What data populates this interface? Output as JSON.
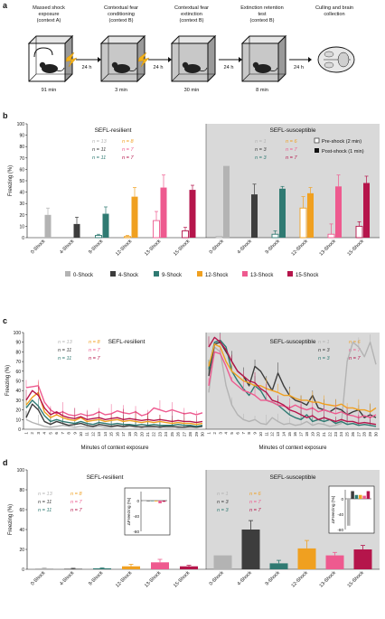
{
  "panel_labels": {
    "a": "a",
    "b": "b",
    "c": "c",
    "d": "d"
  },
  "panel_a": {
    "stages": [
      {
        "title": [
          "Massed shock",
          "exposure",
          "(context A)"
        ],
        "duration": "91 min",
        "shock": true
      },
      {
        "title": [
          "Contextual fear",
          "conditioning",
          "(context B)"
        ],
        "duration": "3 min",
        "shock": true
      },
      {
        "title": [
          "Contextual fear",
          "extinction",
          "(context B)"
        ],
        "duration": "30 min",
        "shock": false
      },
      {
        "title": [
          "Extinction retention",
          "test",
          "(context B)"
        ],
        "duration": "8 min",
        "shock": false
      },
      {
        "title": [
          "Culling and brain",
          "collection"
        ],
        "duration": "",
        "shock": false
      }
    ],
    "gap_label": "24 h"
  },
  "groups": {
    "resilient_title": "SEFL-resilient",
    "susceptible_title": "SEFL-susceptible",
    "names": [
      "0-Shock",
      "4-Shock",
      "9-Shock",
      "12-Shock",
      "13-Shock",
      "15-Shock"
    ],
    "colors": [
      "#b3b3b3",
      "#3d3d3d",
      "#2f7a72",
      "#f0a020",
      "#ee5a8f",
      "#b5154b"
    ],
    "n_resilient": [
      "n = 13",
      "n = 11",
      "n = 11",
      "n = 8",
      "n = 7",
      "n = 7"
    ],
    "n_susceptible_b": [
      "n = 1",
      "n = 3",
      "n = 3",
      "n = 6",
      "n = 7",
      "n = 7"
    ],
    "n_susceptible_c": [
      "n = 1",
      "n = 3",
      "n = 3",
      "n = 6",
      "n = 7",
      "n = 7"
    ]
  },
  "chart_data": [
    {
      "type": "bar",
      "panel": "b",
      "ylabel": "Freezing (%)",
      "ylim": [
        0,
        100
      ],
      "yticks": [
        "0",
        "10",
        "20",
        "30",
        "40",
        "50",
        "60",
        "70",
        "80",
        "90",
        "100"
      ],
      "legend": {
        "pre": "Pre-shock (2 min)",
        "post": "Post-shock (1 min)"
      },
      "categories": [
        "0-Shock",
        "4-Shock",
        "9-Shock",
        "12-Shock",
        "13-Shock",
        "15-Shock"
      ],
      "series": [
        {
          "name": "Pre-shock (2 min)",
          "resilient": [
            0,
            0,
            2,
            1,
            15,
            6
          ],
          "resilient_err": [
            0,
            0,
            1,
            1,
            8,
            3
          ],
          "susceptible": [
            1,
            0,
            3,
            26,
            3,
            10
          ],
          "susceptible_err": [
            0,
            0,
            3,
            10,
            9,
            4
          ]
        },
        {
          "name": "Post-shock (1 min)",
          "resilient": [
            20,
            12,
            21,
            36,
            44,
            42
          ],
          "resilient_err": [
            6,
            6,
            6,
            8,
            11,
            4
          ],
          "susceptible": [
            63,
            38,
            43,
            39,
            45,
            48
          ],
          "susceptible_err": [
            0,
            9,
            2,
            5,
            10,
            6
          ]
        }
      ]
    },
    {
      "type": "line",
      "panel": "c",
      "xlabel": "Minutes of context exposure",
      "ylabel": "Freezing (%)",
      "ylim": [
        0,
        100
      ],
      "yticks": [
        "0",
        "10",
        "20",
        "30",
        "40",
        "50",
        "60",
        "70",
        "80",
        "90",
        "100"
      ],
      "x": [
        "1",
        "2",
        "3",
        "4",
        "5",
        "6",
        "7",
        "8",
        "9",
        "10",
        "11",
        "12",
        "13",
        "14",
        "15",
        "16",
        "17",
        "18",
        "19",
        "20",
        "21",
        "22",
        "23",
        "24",
        "25",
        "26",
        "27",
        "28",
        "29",
        "30"
      ],
      "resilient": [
        {
          "name": "0-Shock",
          "values": [
            10,
            7,
            5,
            3,
            2,
            3,
            4,
            3,
            2,
            3,
            2,
            2,
            3,
            2,
            2,
            3,
            2,
            3,
            2,
            3,
            2,
            2,
            3,
            2,
            2,
            3,
            2,
            2,
            2,
            3
          ]
        },
        {
          "name": "4-Shock",
          "values": [
            12,
            26,
            20,
            8,
            5,
            8,
            6,
            4,
            5,
            6,
            4,
            3,
            5,
            4,
            3,
            4,
            3,
            4,
            3,
            2,
            3,
            3,
            2,
            3,
            3,
            2,
            2,
            3,
            2,
            3
          ]
        },
        {
          "name": "9-Shock",
          "values": [
            22,
            30,
            24,
            14,
            8,
            10,
            8,
            7,
            6,
            8,
            6,
            5,
            7,
            6,
            5,
            6,
            5,
            5,
            4,
            5,
            4,
            5,
            4,
            4,
            4,
            5,
            4,
            4,
            3,
            4
          ]
        },
        {
          "name": "12-Shock",
          "values": [
            25,
            33,
            38,
            18,
            12,
            15,
            12,
            10,
            9,
            12,
            8,
            9,
            10,
            8,
            9,
            10,
            8,
            9,
            8,
            7,
            8,
            7,
            8,
            7,
            6,
            7,
            6,
            6,
            5,
            6
          ]
        },
        {
          "name": "13-Shock",
          "values": [
            43,
            44,
            45,
            28,
            20,
            16,
            18,
            15,
            14,
            16,
            14,
            15,
            18,
            15,
            16,
            19,
            17,
            16,
            18,
            14,
            16,
            22,
            20,
            18,
            20,
            18,
            16,
            17,
            15,
            17
          ]
        },
        {
          "name": "15-Shock",
          "values": [
            30,
            40,
            35,
            22,
            15,
            18,
            14,
            12,
            11,
            13,
            10,
            11,
            12,
            10,
            11,
            12,
            10,
            11,
            10,
            9,
            10,
            9,
            10,
            9,
            8,
            9,
            8,
            8,
            7,
            8
          ]
        }
      ],
      "susceptible": [
        {
          "name": "0-Shock",
          "values": [
            38,
            85,
            80,
            45,
            25,
            15,
            10,
            8,
            10,
            6,
            5,
            12,
            8,
            5,
            6,
            4,
            5,
            8,
            4,
            6,
            5,
            3,
            4,
            6,
            70,
            90,
            85,
            75,
            90,
            67
          ]
        },
        {
          "name": "4-Shock",
          "values": [
            55,
            88,
            90,
            80,
            70,
            60,
            55,
            45,
            65,
            60,
            50,
            40,
            58,
            45,
            35,
            30,
            28,
            25,
            35,
            22,
            20,
            18,
            22,
            20,
            15,
            18,
            20,
            12,
            15,
            12
          ]
        },
        {
          "name": "9-Shock",
          "values": [
            62,
            90,
            92,
            85,
            60,
            50,
            42,
            35,
            45,
            40,
            30,
            28,
            25,
            20,
            15,
            12,
            10,
            15,
            8,
            10,
            8,
            10,
            6,
            8,
            5,
            6,
            4,
            5,
            4,
            3
          ]
        },
        {
          "name": "12-Shock",
          "values": [
            65,
            88,
            85,
            70,
            60,
            55,
            50,
            48,
            45,
            45,
            42,
            40,
            38,
            35,
            35,
            32,
            30,
            30,
            28,
            28,
            26,
            25,
            24,
            26,
            22,
            22,
            20,
            20,
            18,
            22
          ]
        },
        {
          "name": "13-Shock",
          "values": [
            45,
            80,
            78,
            65,
            50,
            45,
            40,
            38,
            35,
            30,
            30,
            28,
            25,
            24,
            22,
            25,
            22,
            20,
            22,
            18,
            20,
            18,
            16,
            18,
            15,
            14,
            12,
            14,
            12,
            15
          ]
        },
        {
          "name": "15-Shock",
          "values": [
            85,
            95,
            90,
            82,
            70,
            60,
            55,
            50,
            48,
            42,
            38,
            30,
            28,
            25,
            20,
            18,
            15,
            12,
            14,
            10,
            12,
            10,
            8,
            10,
            8,
            8,
            6,
            7,
            6,
            5
          ]
        }
      ]
    },
    {
      "type": "bar",
      "panel": "d",
      "ylabel": "Freezing (%)",
      "ylim": [
        0,
        100
      ],
      "yticks": [
        "0",
        "20",
        "40",
        "60",
        "80",
        "100"
      ],
      "categories": [
        "0-Shock",
        "4-Shock",
        "9-Shock",
        "12-Shock",
        "13-Shock",
        "15-Shock"
      ],
      "resilient": [
        1,
        0.5,
        1,
        3,
        7,
        3
      ],
      "resilient_err": [
        0.5,
        0.5,
        0.5,
        2,
        3,
        1
      ],
      "susceptible": [
        14,
        40,
        6,
        21,
        14,
        20
      ],
      "susceptible_err": [
        0,
        9,
        3,
        8,
        3,
        4
      ],
      "inset_ylabel": "ΔFreezing (%)",
      "inset_yticks": [
        "0",
        "-40",
        "-80"
      ],
      "inset_resilient": [
        0,
        -1,
        -1,
        -2,
        -7,
        -3
      ],
      "inset_susceptible": [
        -70,
        20,
        10,
        10,
        8,
        20
      ]
    }
  ]
}
